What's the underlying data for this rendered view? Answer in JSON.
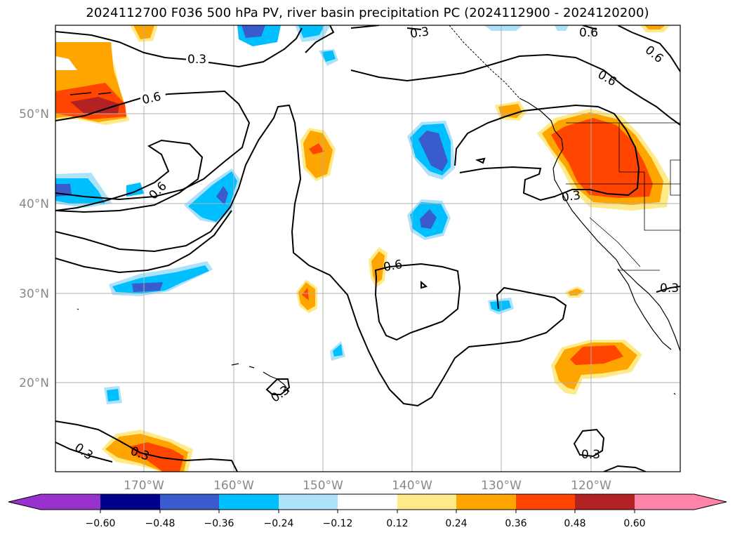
{
  "title": "2024112700 F036 500 hPa PV, river basin precipitation PC (2024112900 - 2024120200)",
  "map": {
    "longitude_labels": [
      "170°W",
      "160°W",
      "150°W",
      "140°W",
      "130°W",
      "120°W"
    ],
    "latitude_labels": [
      "50°N",
      "40°N",
      "30°N",
      "20°N"
    ],
    "contour_labels": [
      "0.3",
      "0.6",
      "0.6",
      "0.6",
      "0.6",
      "0.6",
      "0.3",
      "0.3",
      "0.3",
      "0.3",
      "0.3",
      "0.3",
      "0.6",
      "0.3"
    ]
  },
  "colorbar": {
    "tick_labels": [
      "−0.60",
      "−0.48",
      "−0.36",
      "−0.24",
      "−0.12",
      "0.12",
      "0.24",
      "0.36",
      "0.48",
      "0.60"
    ],
    "colors": [
      "#9932CC",
      "#00008B",
      "#3A5BCC",
      "#00BFFF",
      "#ADE2FA",
      "#FFFFFF",
      "#FFEA8A",
      "#FFA500",
      "#FF4500",
      "#B22222",
      "#FF85A8"
    ]
  }
}
